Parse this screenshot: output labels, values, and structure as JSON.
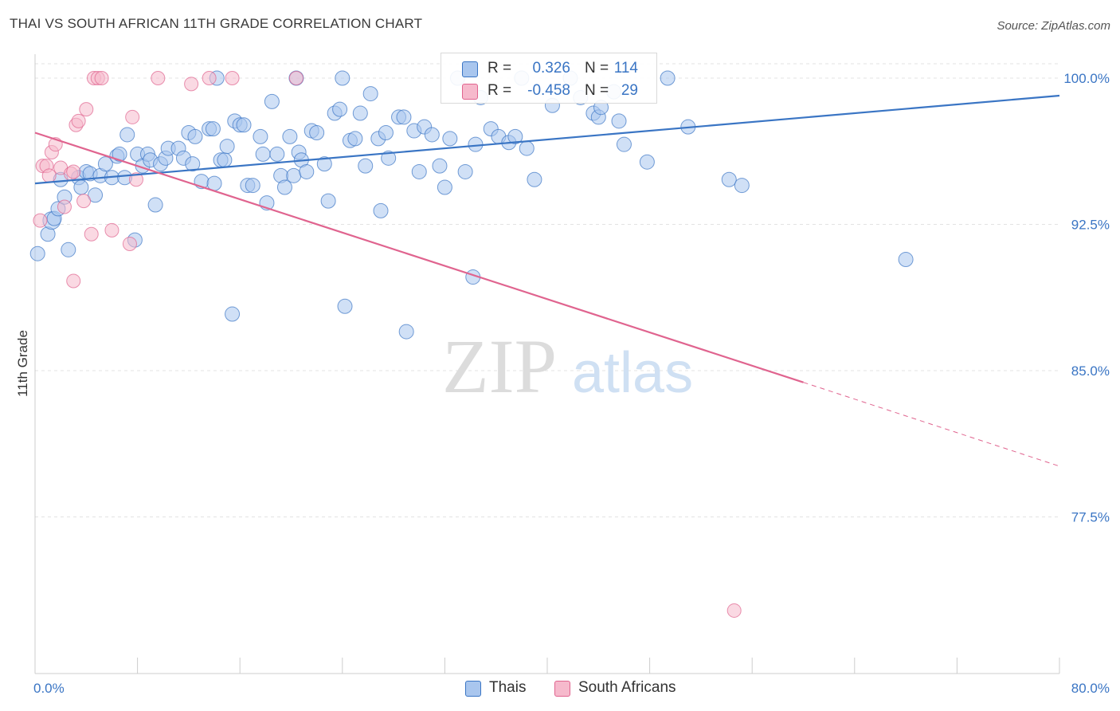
{
  "header": {
    "title": "THAI VS SOUTH AFRICAN 11TH GRADE CORRELATION CHART",
    "source": "Source: ZipAtlas.com"
  },
  "watermark": {
    "zip": "ZIP",
    "atlas": "atlas"
  },
  "legend_top": {
    "rows": [
      {
        "r_label": "R =",
        "r_value": "0.326",
        "n_label": "N =",
        "n_value": "114",
        "color": "#a9c6ee"
      },
      {
        "r_label": "R =",
        "r_value": "-0.458",
        "n_label": "N =",
        "n_value": "29",
        "color": "#f6b9cc"
      }
    ]
  },
  "legend_bottom": {
    "items": [
      {
        "label": "Thais",
        "color": "#a9c6ee"
      },
      {
        "label": "South Africans",
        "color": "#f6b9cc"
      }
    ]
  },
  "chart_data": {
    "type": "scatter",
    "ylabel": "11th Grade",
    "xlabel": "",
    "x_tick_labels": [
      "0.0%",
      "80.0%"
    ],
    "y_tick_labels": [
      "100.0%",
      "92.5%",
      "85.0%",
      "77.5%"
    ],
    "y_ticks": [
      100.0,
      92.5,
      85.0,
      77.5
    ],
    "xlim": [
      0,
      80
    ],
    "ylim": [
      71.5,
      100.6
    ],
    "grid": true,
    "colors": {
      "thai": "#3a75c4",
      "thai_fill": "#a9c6ee",
      "sa": "#e0648f",
      "sa_fill": "#f6b9cc"
    },
    "series": [
      {
        "name": "Thais",
        "trend": {
          "x": [
            0,
            80
          ],
          "y": [
            94.6,
            99.1
          ]
        },
        "points": [
          [
            0.2,
            91.0
          ],
          [
            1.0,
            92.0
          ],
          [
            1.3,
            92.7
          ],
          [
            1.5,
            92.8
          ],
          [
            1.8,
            93.3
          ],
          [
            2.0,
            94.8
          ],
          [
            2.3,
            93.9
          ],
          [
            2.6,
            91.2
          ],
          [
            3.4,
            94.9
          ],
          [
            3.6,
            94.4
          ],
          [
            4.0,
            95.2
          ],
          [
            4.3,
            95.1
          ],
          [
            4.7,
            94.0
          ],
          [
            5.1,
            95.0
          ],
          [
            5.5,
            95.6
          ],
          [
            6.0,
            94.9
          ],
          [
            6.4,
            96.0
          ],
          [
            6.6,
            96.1
          ],
          [
            7.0,
            94.9
          ],
          [
            7.2,
            97.1
          ],
          [
            7.8,
            91.7
          ],
          [
            8.0,
            96.1
          ],
          [
            8.4,
            95.5
          ],
          [
            8.8,
            96.1
          ],
          [
            9.0,
            95.8
          ],
          [
            9.4,
            93.5
          ],
          [
            9.8,
            95.6
          ],
          [
            10.2,
            95.9
          ],
          [
            10.4,
            96.4
          ],
          [
            11.2,
            96.4
          ],
          [
            11.6,
            95.9
          ],
          [
            12.3,
            95.6
          ],
          [
            12.0,
            97.2
          ],
          [
            12.5,
            97.0
          ],
          [
            13.0,
            94.7
          ],
          [
            13.6,
            97.4
          ],
          [
            13.9,
            97.4
          ],
          [
            14.0,
            94.6
          ],
          [
            14.5,
            95.8
          ],
          [
            14.8,
            95.8
          ],
          [
            15.0,
            96.5
          ],
          [
            15.4,
            87.9
          ],
          [
            15.6,
            97.8
          ],
          [
            16.0,
            97.6
          ],
          [
            16.3,
            97.6
          ],
          [
            16.6,
            94.5
          ],
          [
            17.0,
            94.5
          ],
          [
            17.6,
            97.0
          ],
          [
            17.8,
            96.1
          ],
          [
            18.1,
            93.6
          ],
          [
            18.5,
            98.8
          ],
          [
            18.9,
            96.1
          ],
          [
            19.2,
            95.0
          ],
          [
            19.5,
            94.4
          ],
          [
            19.9,
            97.0
          ],
          [
            20.2,
            95.0
          ],
          [
            20.6,
            96.2
          ],
          [
            20.8,
            95.8
          ],
          [
            21.2,
            95.2
          ],
          [
            21.6,
            97.3
          ],
          [
            22.0,
            97.2
          ],
          [
            22.6,
            95.6
          ],
          [
            22.9,
            93.7
          ],
          [
            23.4,
            98.2
          ],
          [
            23.8,
            98.4
          ],
          [
            24.2,
            88.3
          ],
          [
            24.6,
            96.8
          ],
          [
            25.0,
            96.9
          ],
          [
            25.4,
            98.2
          ],
          [
            25.8,
            95.5
          ],
          [
            26.2,
            99.2
          ],
          [
            26.8,
            96.9
          ],
          [
            27.0,
            93.2
          ],
          [
            27.4,
            97.2
          ],
          [
            27.6,
            95.9
          ],
          [
            28.4,
            98.0
          ],
          [
            28.8,
            98.0
          ],
          [
            29.0,
            87.0
          ],
          [
            29.6,
            97.3
          ],
          [
            30.0,
            95.2
          ],
          [
            30.4,
            97.5
          ],
          [
            31.0,
            97.1
          ],
          [
            31.6,
            95.5
          ],
          [
            32.0,
            94.4
          ],
          [
            32.4,
            96.9
          ],
          [
            33.0,
            100.0
          ],
          [
            33.6,
            95.2
          ],
          [
            34.2,
            89.8
          ],
          [
            34.4,
            96.6
          ],
          [
            34.8,
            99.0
          ],
          [
            35.6,
            97.4
          ],
          [
            36.2,
            97.0
          ],
          [
            37.0,
            96.7
          ],
          [
            37.5,
            97.0
          ],
          [
            38.0,
            100.0
          ],
          [
            38.4,
            96.4
          ],
          [
            39.0,
            94.8
          ],
          [
            40.4,
            98.6
          ],
          [
            41.8,
            100.0
          ],
          [
            42.6,
            99.0
          ],
          [
            43.6,
            98.2
          ],
          [
            44.0,
            98.0
          ],
          [
            44.2,
            98.5
          ],
          [
            45.2,
            99.3
          ],
          [
            45.6,
            97.8
          ],
          [
            46.0,
            96.6
          ],
          [
            47.8,
            95.7
          ],
          [
            49.4,
            100.0
          ],
          [
            51.0,
            97.5
          ],
          [
            54.2,
            94.8
          ],
          [
            55.2,
            94.5
          ],
          [
            68.0,
            90.7
          ],
          [
            24.0,
            100.0
          ],
          [
            20.4,
            100.0
          ],
          [
            14.2,
            100.0
          ]
        ],
        "sizes": {
          "0.2,91.0": 30,
          "1.0,92.0": 24,
          "1.3,92.7": 22
        }
      },
      {
        "name": "South Africans",
        "trend": {
          "x": [
            0,
            60
          ],
          "y": [
            97.2,
            84.4
          ]
        },
        "trend_dashed": {
          "x": [
            60,
            80
          ],
          "y": [
            84.4,
            80.1
          ]
        },
        "points": [
          [
            0.4,
            92.7
          ],
          [
            0.6,
            95.5
          ],
          [
            0.9,
            95.5
          ],
          [
            1.1,
            95.0
          ],
          [
            1.3,
            96.2
          ],
          [
            1.6,
            96.6
          ],
          [
            2.0,
            95.4
          ],
          [
            2.3,
            93.4
          ],
          [
            2.8,
            95.1
          ],
          [
            3.0,
            89.6
          ],
          [
            3.2,
            97.6
          ],
          [
            3.4,
            97.8
          ],
          [
            3.8,
            93.7
          ],
          [
            4.0,
            98.4
          ],
          [
            4.4,
            92.0
          ],
          [
            4.6,
            100.0
          ],
          [
            4.9,
            100.0
          ],
          [
            5.2,
            100.0
          ],
          [
            6.0,
            92.2
          ],
          [
            7.4,
            91.5
          ],
          [
            7.6,
            98.0
          ],
          [
            7.9,
            94.8
          ],
          [
            9.6,
            100.0
          ],
          [
            12.2,
            99.7
          ],
          [
            13.6,
            100.0
          ],
          [
            15.4,
            100.0
          ],
          [
            20.4,
            100.0
          ],
          [
            54.6,
            72.7
          ],
          [
            3.0,
            95.2
          ]
        ]
      }
    ]
  }
}
